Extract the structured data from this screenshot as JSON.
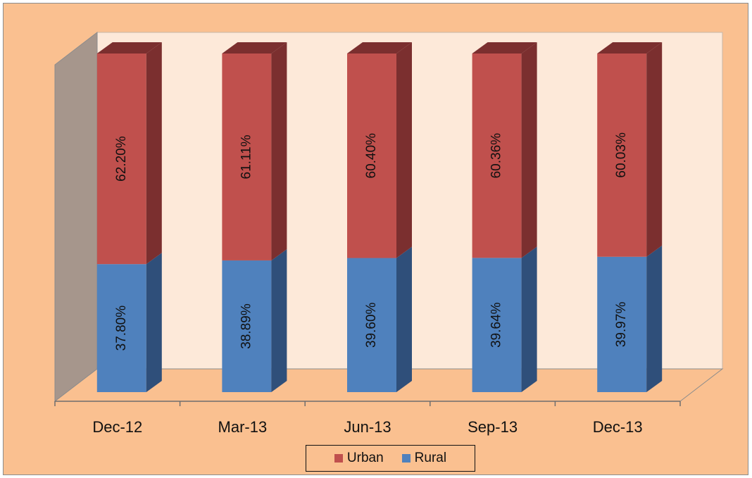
{
  "chart_data": {
    "type": "bar",
    "stacked": true,
    "percent_stacked": true,
    "three_d": true,
    "categories": [
      "Dec-12",
      "Mar-13",
      "Jun-13",
      "Sep-13",
      "Dec-13"
    ],
    "series": [
      {
        "name": "Rural",
        "values": [
          37.8,
          38.89,
          39.6,
          39.64,
          39.97
        ],
        "labels": [
          "37.80%",
          "38.89%",
          "39.60%",
          "39.64%",
          "39.97%"
        ],
        "color": "#4f81bd",
        "side_color": "#2f4f7a"
      },
      {
        "name": "Urban",
        "values": [
          62.2,
          61.11,
          60.4,
          60.36,
          60.03
        ],
        "labels": [
          "62.20%",
          "61.11%",
          "60.40%",
          "60.36%",
          "60.03%"
        ],
        "color": "#c0504d",
        "side_color": "#7b2f2f"
      }
    ],
    "ylim": [
      0,
      100
    ],
    "legend_position": "bottom",
    "legend_order": [
      "Urban",
      "Rural"
    ],
    "colors": {
      "chart_background": "#fac090",
      "wall": "#fde9d9",
      "side_wall": "#a6968c",
      "floor": "#fac090"
    }
  }
}
